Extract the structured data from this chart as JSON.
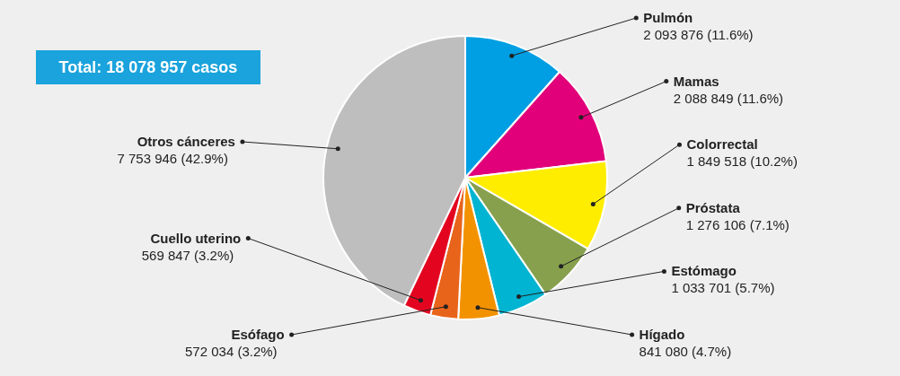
{
  "chart_data": {
    "type": "pie",
    "categories": [
      "Pulmón",
      "Mamas",
      "Colorrectal",
      "Próstata",
      "Estómago",
      "Hígado",
      "Esófago",
      "Cuello uterino",
      "Otros cánceres"
    ],
    "values": [
      2093876,
      2088849,
      1849518,
      1276106,
      1033701,
      841080,
      572034,
      569847,
      7753946
    ],
    "value_labels": [
      "2 093 876 (11.6%)",
      "2 088 849 (11.6%)",
      "1 849 518 (10.2%)",
      "1 276 106 (7.1%)",
      "1 033 701 (5.7%)",
      "841 080 (4.7%)",
      "572 034 (3.2%)",
      "569 847 (3.2%)",
      "7 753 946 (42.9%)"
    ],
    "colors": [
      "#009fe3",
      "#e2007a",
      "#ffed00",
      "#87a04e",
      "#00b4d2",
      "#f39200",
      "#e8641b",
      "#e30520",
      "#bebebe"
    ],
    "annotations": [
      "Total: 18 078 957 casos"
    ]
  }
}
